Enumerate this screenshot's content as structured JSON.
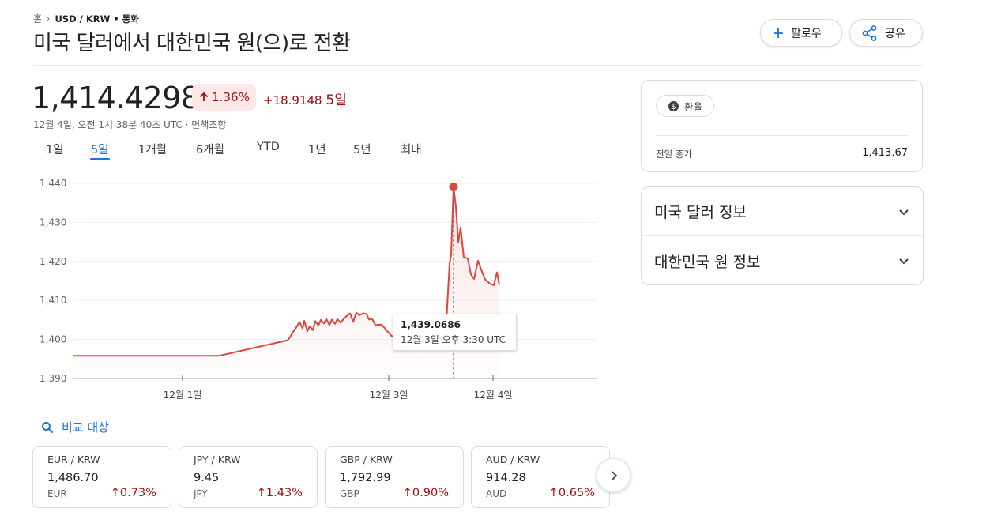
{
  "breadcrumb": {
    "home": "홈",
    "current": "USD / KRW • 통화"
  },
  "title": "미국 달러에서 대한민국 원(으)로 전환",
  "buttons": {
    "follow": "팔로우",
    "share": "공유"
  },
  "quote": {
    "price": "1,414.4298",
    "change_pct": "1.36%",
    "change_abs": "+18.9148",
    "period": "5일",
    "timestamp": "12월 4일, 오전 1시 38분 40초 UTC · 면책조항"
  },
  "range_tabs": [
    "1일",
    "5일",
    "1개월",
    "6개월",
    "YTD",
    "1년",
    "5년",
    "최대"
  ],
  "active_tab": "5일",
  "chart_data": {
    "type": "line",
    "y_ticks": [
      "1,440",
      "1,430",
      "1,420",
      "1,410",
      "1,400",
      "1,390"
    ],
    "x_ticks": [
      "12월 1일",
      "12월 3일",
      "12월 4일"
    ],
    "ylim": [
      1390,
      1440
    ],
    "series": [
      {
        "values": [
          1395.8,
          1395.8,
          1395.8,
          1395.8,
          1395.8,
          1395.8,
          1399.8,
          1400.6,
          1402.3,
          1403.1,
          1404.5,
          1402.9,
          1404.8,
          1402.1,
          1403.4,
          1402.4,
          1404.7,
          1403.6,
          1405.0,
          1404.1,
          1405.3,
          1403.7,
          1405.1,
          1404.0,
          1405.2,
          1404.3,
          1405.5,
          1406.7,
          1404.5,
          1406.9,
          1406.2,
          1406.7,
          1406.5,
          1405.1,
          1405.3,
          1403.7,
          1403.8,
          1400.8,
          1404.8,
          1419.5,
          1421.8,
          1439.07,
          1434.0,
          1425.0,
          1428.7,
          1421.0,
          1420.8,
          1416.7,
          1415.5,
          1420.2,
          1417.9,
          1415.4,
          1414.3,
          1413.9,
          1417.2,
          1414.0
        ],
        "color": "#e1453b"
      }
    ],
    "highlight": {
      "value": "1,439.0686",
      "time": "12월 3일 오후 3:30 UTC"
    }
  },
  "compare_label": "비교 대상",
  "cards": [
    {
      "pair": "EUR / KRW",
      "value": "1,486.70",
      "currency": "EUR",
      "change": "0.73%"
    },
    {
      "pair": "JPY / KRW",
      "value": "9.45",
      "currency": "JPY",
      "change": "1.43%"
    },
    {
      "pair": "GBP / KRW",
      "value": "1,792.99",
      "currency": "GBP",
      "change": "0.90%"
    },
    {
      "pair": "AUD / KRW",
      "value": "914.28",
      "currency": "AUD",
      "change": "0.65%"
    }
  ],
  "side": {
    "chip": "환율",
    "prev_close_label": "전일 종가",
    "prev_close_value": "1,413.67",
    "info_rows": [
      "미국 달러 정보",
      "대한민국 원 정보"
    ]
  },
  "colors": {
    "down_red": "#a50e0e",
    "accent_blue": "#1a73e8",
    "line_red": "#e1453b"
  }
}
